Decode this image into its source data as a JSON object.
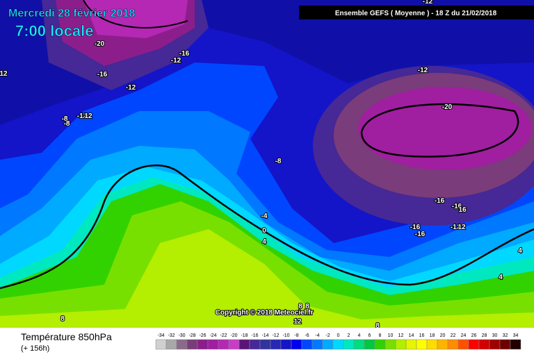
{
  "header": {
    "date": "Mercredi 28 février 2018",
    "time": "7:00 locale",
    "model": "Ensemble GEFS  ( Moyenne )  -  18 Z du 21/02/2018"
  },
  "copyright": "Copyright © 2018 Meteociel.fr",
  "footer": {
    "variable": "Température 850hPa",
    "lead": "(+ 156h)"
  },
  "contour_labels": [
    -20,
    -16,
    -12,
    -16,
    -12,
    12,
    -12,
    -20,
    -8,
    -8,
    -12,
    12,
    -8,
    -16,
    -16,
    16,
    -16,
    -16,
    -12,
    12,
    -4,
    0,
    4,
    4,
    4,
    8,
    8,
    8,
    12,
    8,
    -12
  ],
  "scale": {
    "values": [
      -34,
      -32,
      -30,
      -28,
      -26,
      -24,
      -22,
      -20,
      -18,
      -16,
      -14,
      -12,
      -10,
      -8,
      -6,
      -4,
      -2,
      0,
      2,
      4,
      6,
      8,
      10,
      12,
      14,
      16,
      18,
      20,
      22,
      24,
      26,
      28,
      30,
      32,
      34
    ],
    "colors": [
      "#d0d0d0",
      "#a8a8a8",
      "#8a6a8a",
      "#7a3c7a",
      "#8c1e8c",
      "#a01ea0",
      "#b428b4",
      "#c83cc8",
      "#5a1478",
      "#462896",
      "#3232a0",
      "#2828b4",
      "#1414c8",
      "#0000f0",
      "#0046ff",
      "#0078ff",
      "#00aaff",
      "#00d8ff",
      "#00e8c0",
      "#00dc80",
      "#00c840",
      "#32d200",
      "#78e000",
      "#b4ee00",
      "#e6f500",
      "#ffff00",
      "#ffdc00",
      "#ffb400",
      "#ff8c00",
      "#ff5000",
      "#ff0000",
      "#d20000",
      "#a00000",
      "#6e0000",
      "#200000"
    ]
  }
}
